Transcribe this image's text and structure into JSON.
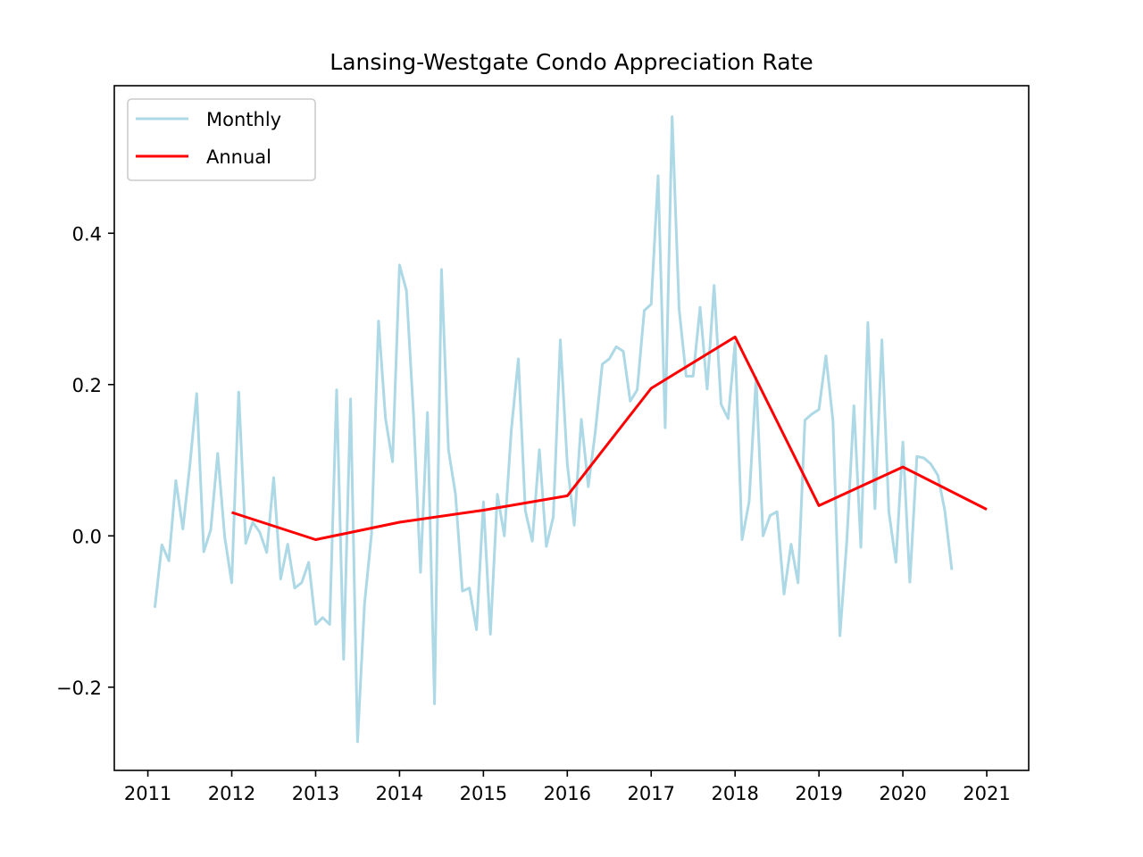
{
  "chart_data": {
    "type": "line",
    "title": "Lansing-Westgate Condo Appreciation Rate",
    "xlabel": "",
    "ylabel": "",
    "xlim": [
      2010.6,
      2021.5
    ],
    "ylim": [
      -0.31,
      0.595
    ],
    "x_ticks": [
      2011,
      2012,
      2013,
      2014,
      2015,
      2016,
      2017,
      2018,
      2019,
      2020,
      2021
    ],
    "x_tick_labels": [
      "2011",
      "2012",
      "2013",
      "2014",
      "2015",
      "2016",
      "2017",
      "2018",
      "2019",
      "2020",
      "2021"
    ],
    "y_ticks": [
      -0.2,
      0.0,
      0.2,
      0.4
    ],
    "y_tick_labels": [
      "−0.2",
      "0.0",
      "0.2",
      "0.4"
    ],
    "grid": false,
    "legend_position": "top-left",
    "series": [
      {
        "name": "Monthly",
        "color": "#add8e6",
        "x": [
          2011.083,
          2011.167,
          2011.25,
          2011.333,
          2011.417,
          2011.5,
          2011.583,
          2011.667,
          2011.75,
          2011.833,
          2011.917,
          2012.0,
          2012.083,
          2012.167,
          2012.25,
          2012.333,
          2012.417,
          2012.5,
          2012.583,
          2012.667,
          2012.75,
          2012.833,
          2012.917,
          2013.0,
          2013.083,
          2013.167,
          2013.25,
          2013.333,
          2013.417,
          2013.5,
          2013.583,
          2013.667,
          2013.75,
          2013.833,
          2013.917,
          2014.0,
          2014.083,
          2014.167,
          2014.25,
          2014.333,
          2014.417,
          2014.5,
          2014.583,
          2014.667,
          2014.75,
          2014.833,
          2014.917,
          2015.0,
          2015.083,
          2015.167,
          2015.25,
          2015.333,
          2015.417,
          2015.5,
          2015.583,
          2015.667,
          2015.75,
          2015.833,
          2015.917,
          2016.0,
          2016.083,
          2016.167,
          2016.25,
          2016.333,
          2016.417,
          2016.5,
          2016.583,
          2016.667,
          2016.75,
          2016.833,
          2016.917,
          2017.0,
          2017.083,
          2017.167,
          2017.25,
          2017.333,
          2017.417,
          2017.5,
          2017.583,
          2017.667,
          2017.75,
          2017.833,
          2017.917,
          2018.0,
          2018.083,
          2018.167,
          2018.25,
          2018.333,
          2018.417,
          2018.5,
          2018.583,
          2018.667,
          2018.75,
          2018.833,
          2018.917,
          2019.0,
          2019.083,
          2019.167,
          2019.25,
          2019.333,
          2019.417,
          2019.5,
          2019.583,
          2019.667,
          2019.75,
          2019.833,
          2019.917,
          2020.0,
          2020.083,
          2020.167,
          2020.25,
          2020.333,
          2020.417,
          2020.5,
          2020.583
        ],
        "values": [
          -0.095,
          -0.012,
          -0.033,
          0.073,
          0.009,
          0.093,
          0.188,
          -0.021,
          0.008,
          0.109,
          -0.002,
          -0.062,
          0.19,
          -0.01,
          0.018,
          0.005,
          -0.022,
          0.077,
          -0.057,
          -0.011,
          -0.069,
          -0.062,
          -0.035,
          -0.117,
          -0.108,
          -0.117,
          0.193,
          -0.163,
          0.181,
          -0.272,
          -0.09,
          0.003,
          0.284,
          0.155,
          0.098,
          0.358,
          0.324,
          0.16,
          -0.048,
          0.163,
          -0.222,
          0.352,
          0.114,
          0.055,
          -0.073,
          -0.069,
          -0.124,
          0.045,
          -0.13,
          0.055,
          0.0,
          0.14,
          0.234,
          0.033,
          -0.007,
          0.114,
          -0.014,
          0.025,
          0.259,
          0.095,
          0.014,
          0.154,
          0.065,
          0.137,
          0.227,
          0.234,
          0.25,
          0.244,
          0.178,
          0.193,
          0.298,
          0.306,
          0.476,
          0.143,
          0.554,
          0.3,
          0.211,
          0.211,
          0.302,
          0.194,
          0.331,
          0.174,
          0.155,
          0.255,
          -0.005,
          0.045,
          0.209,
          0.0,
          0.027,
          0.032,
          -0.077,
          -0.011,
          -0.062,
          0.153,
          0.161,
          0.167,
          0.238,
          0.152,
          -0.132,
          -0.005,
          0.172,
          -0.015,
          0.282,
          0.036,
          0.259,
          0.032,
          -0.035,
          0.124,
          -0.061,
          0.105,
          0.103,
          0.095,
          0.08,
          0.033,
          -0.045
        ]
      },
      {
        "name": "Annual",
        "color": "#ff0000",
        "x": [
          2012,
          2013,
          2014,
          2015,
          2016,
          2017,
          2018,
          2019,
          2020,
          2021
        ],
        "values": [
          0.031,
          -0.005,
          0.018,
          0.034,
          0.053,
          0.195,
          0.263,
          0.04,
          0.091,
          0.035
        ]
      }
    ]
  }
}
